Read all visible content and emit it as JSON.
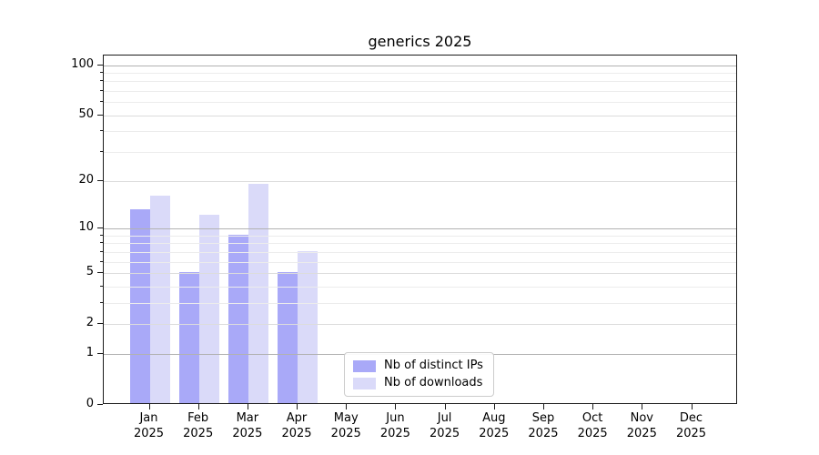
{
  "chart_data": {
    "type": "bar",
    "title": "generics 2025",
    "categories": [
      "Jan",
      "Feb",
      "Mar",
      "Apr",
      "May",
      "Jun",
      "Jul",
      "Aug",
      "Sep",
      "Oct",
      "Nov",
      "Dec"
    ],
    "x_year_label": "2025",
    "series": [
      {
        "name": "Nb of distinct IPs",
        "color": "#a9a9f8",
        "values": [
          13,
          5,
          9,
          5,
          0,
          0,
          0,
          0,
          0,
          0,
          0,
          0
        ]
      },
      {
        "name": "Nb of downloads",
        "color": "#dadaf9",
        "values": [
          16,
          12,
          19,
          7,
          0,
          0,
          0,
          0,
          0,
          0,
          0,
          0
        ]
      }
    ],
    "y_axis": {
      "scale": "log1p",
      "tick_labels": [
        "0",
        "1",
        "2",
        "5",
        "10",
        "20",
        "50",
        "100"
      ],
      "tick_values": [
        0,
        1,
        2,
        5,
        10,
        20,
        50,
        100
      ],
      "major_grid_values": [
        1,
        10,
        100
      ],
      "mid_grid_values": [
        2,
        5,
        20,
        50
      ],
      "minor_grid_values": [
        3,
        4,
        6,
        7,
        8,
        9,
        30,
        40,
        60,
        70,
        80,
        90
      ],
      "y_max": 114
    },
    "legend_position": "lower-center",
    "grid": true
  },
  "colors": {
    "grid_major": "#b2b2b2",
    "grid_mid": "#dcdcdc",
    "grid_minor": "#ececec",
    "axis": "#1a1a1a",
    "legend_border": "#cccccc",
    "text": "#000000",
    "background": "#ffffff"
  }
}
